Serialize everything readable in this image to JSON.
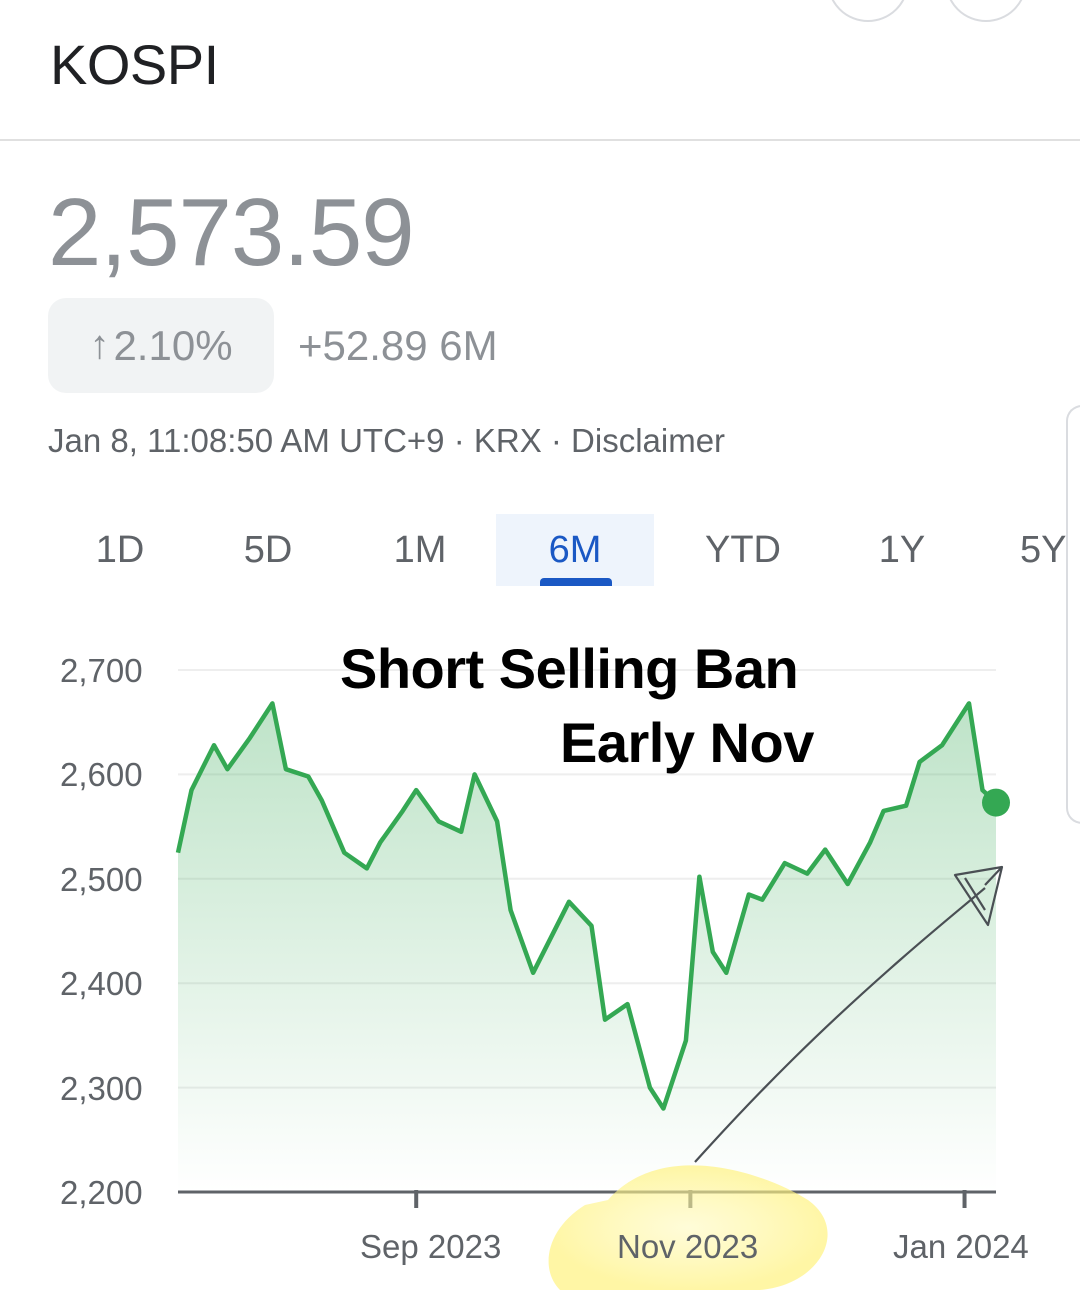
{
  "header": {
    "title": "KOSPI"
  },
  "quote": {
    "price": "2,573.59",
    "change_pct": "2.10%",
    "change_abs": "+52.89 6M",
    "meta": "Jan 8, 11:08:50 AM UTC+9 · KRX · Disclaimer"
  },
  "tabs": [
    {
      "label": "1D"
    },
    {
      "label": "5D"
    },
    {
      "label": "1M"
    },
    {
      "label": "6M"
    },
    {
      "label": "YTD"
    },
    {
      "label": "1Y"
    },
    {
      "label": "5Y"
    }
  ],
  "selected_tab": "6M",
  "colors": {
    "line": "#34a853",
    "accent": "#1a58c4",
    "highlight": "#fff27a"
  },
  "annotation": {
    "line1": "Short Selling Ban",
    "line2": "Early Nov"
  },
  "chart_data": {
    "type": "area",
    "title": "",
    "xlabel": "",
    "ylabel": "",
    "ylim": [
      2200,
      2700
    ],
    "yticks": [
      "2,700",
      "2,600",
      "2,500",
      "2,400",
      "2,300",
      "2,200"
    ],
    "xticks": [
      "Sep 2023",
      "Nov 2023",
      "Jan 2024"
    ],
    "grid": true,
    "series": [
      {
        "x": [
          "2023-07-10",
          "2023-07-13",
          "2023-07-18",
          "2023-07-21",
          "2023-07-26",
          "2023-07-31",
          "2023-08-03",
          "2023-08-08",
          "2023-08-11",
          "2023-08-16",
          "2023-08-21",
          "2023-08-24",
          "2023-08-29",
          "2023-09-01",
          "2023-09-06",
          "2023-09-11",
          "2023-09-14",
          "2023-09-19",
          "2023-09-22",
          "2023-09-27",
          "2023-10-05",
          "2023-10-10",
          "2023-10-13",
          "2023-10-18",
          "2023-10-23",
          "2023-10-26",
          "2023-10-31",
          "2023-11-03",
          "2023-11-06",
          "2023-11-09",
          "2023-11-14",
          "2023-11-17",
          "2023-11-22",
          "2023-11-27",
          "2023-12-01",
          "2023-12-06",
          "2023-12-11",
          "2023-12-14",
          "2023-12-19",
          "2023-12-22",
          "2023-12-27",
          "2024-01-02",
          "2024-01-05",
          "2024-01-08"
        ],
        "values": [
          2525,
          2585,
          2628,
          2605,
          2635,
          2668,
          2605,
          2598,
          2575,
          2525,
          2510,
          2535,
          2565,
          2585,
          2555,
          2545,
          2600,
          2555,
          2470,
          2410,
          2478,
          2455,
          2365,
          2380,
          2300,
          2280,
          2345,
          2502,
          2430,
          2410,
          2485,
          2480,
          2515,
          2505,
          2528,
          2495,
          2535,
          2565,
          2570,
          2612,
          2628,
          2668,
          2585,
          2573
        ]
      }
    ]
  }
}
